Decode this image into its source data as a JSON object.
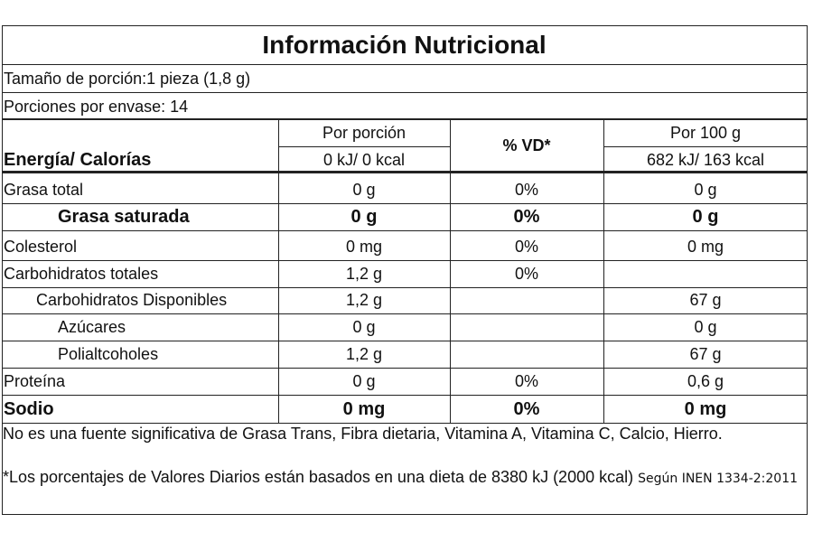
{
  "title": "Información Nutricional",
  "serving_size": "Tamaño de porción:1 pieza (1,8 g)",
  "servings": "Porciones por envase: 14",
  "header": {
    "energy": "Energía/ Calorías",
    "per_portion": "Por porción",
    "per_portion_energy": "0 kJ/ 0 kcal",
    "vd": "% VD*",
    "per_100g": "Por 100 g",
    "per_100g_energy": "682 kJ/ 163 kcal"
  },
  "rows": [
    {
      "name": "Grasa total",
      "per_portion": "0 g",
      "vd": "0%",
      "per_100g": "0 g"
    },
    {
      "name": "Grasa saturada",
      "per_portion": "0 g",
      "vd": "0%",
      "per_100g": "0 g"
    },
    {
      "name": "Colesterol",
      "per_portion": "0 mg",
      "vd": "0%",
      "per_100g": "0 mg"
    },
    {
      "name": "Carbohidratos totales",
      "per_portion": "1,2 g",
      "vd": "0%"
    },
    {
      "name": "Carbohidratos Disponibles",
      "per_portion": "1,2 g",
      "per_100g": "67 g"
    },
    {
      "name": "Azúcares",
      "per_portion": "0 g",
      "per_100g": "0 g"
    },
    {
      "name": "Polialtcoholes",
      "per_portion": "1,2 g",
      "per_100g": "67 g"
    },
    {
      "name": "Proteína",
      "per_portion": "0 g",
      "vd": "0%",
      "per_100g": "0,6 g"
    },
    {
      "name": "Sodio",
      "per_portion": "0 mg",
      "vd": "0%",
      "per_100g": "0 mg"
    }
  ],
  "footer": {
    "note": "No es una fuente significativa de Grasa Trans, Fibra dietaria, Vitamina A, Vitamina C, Calcio, Hierro.",
    "vd_note": "*Los porcentajes de Valores Diarios están basados en una dieta de 8380 kJ (2000 kcal)",
    "standard": "Según INEN 1334-2:2011"
  }
}
